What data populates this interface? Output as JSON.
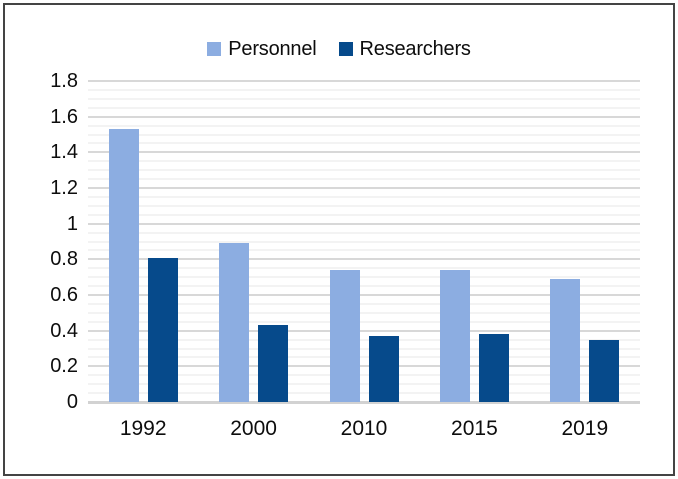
{
  "figure": {
    "background": "#ffffff",
    "border_color": "#444444"
  },
  "chart_data": {
    "type": "bar",
    "title": "",
    "xlabel": "",
    "ylabel": "",
    "categories": [
      "1992",
      "2000",
      "2010",
      "2015",
      "2019"
    ],
    "series": [
      {
        "name": "Personnel",
        "color": "#8CADE1",
        "values": [
          1.53,
          0.89,
          0.74,
          0.74,
          0.69
        ]
      },
      {
        "name": "Researchers",
        "color": "#064A8B",
        "values": [
          0.81,
          0.43,
          0.37,
          0.38,
          0.35
        ]
      }
    ],
    "ylim": [
      0,
      1.8
    ],
    "ytick_step": 0.2,
    "yminor_step": 0.05,
    "ytick_labels": [
      "0",
      "0.2",
      "0.4",
      "0.6",
      "0.8",
      "1",
      "1.2",
      "1.4",
      "1.6",
      "1.8"
    ],
    "grid": {
      "orientation": "horizontal",
      "major_color": "#d8d8d8",
      "minor_color": "#f3f3f3",
      "baseline_color": "#d2d2d2"
    },
    "legend_position": "top-center"
  }
}
